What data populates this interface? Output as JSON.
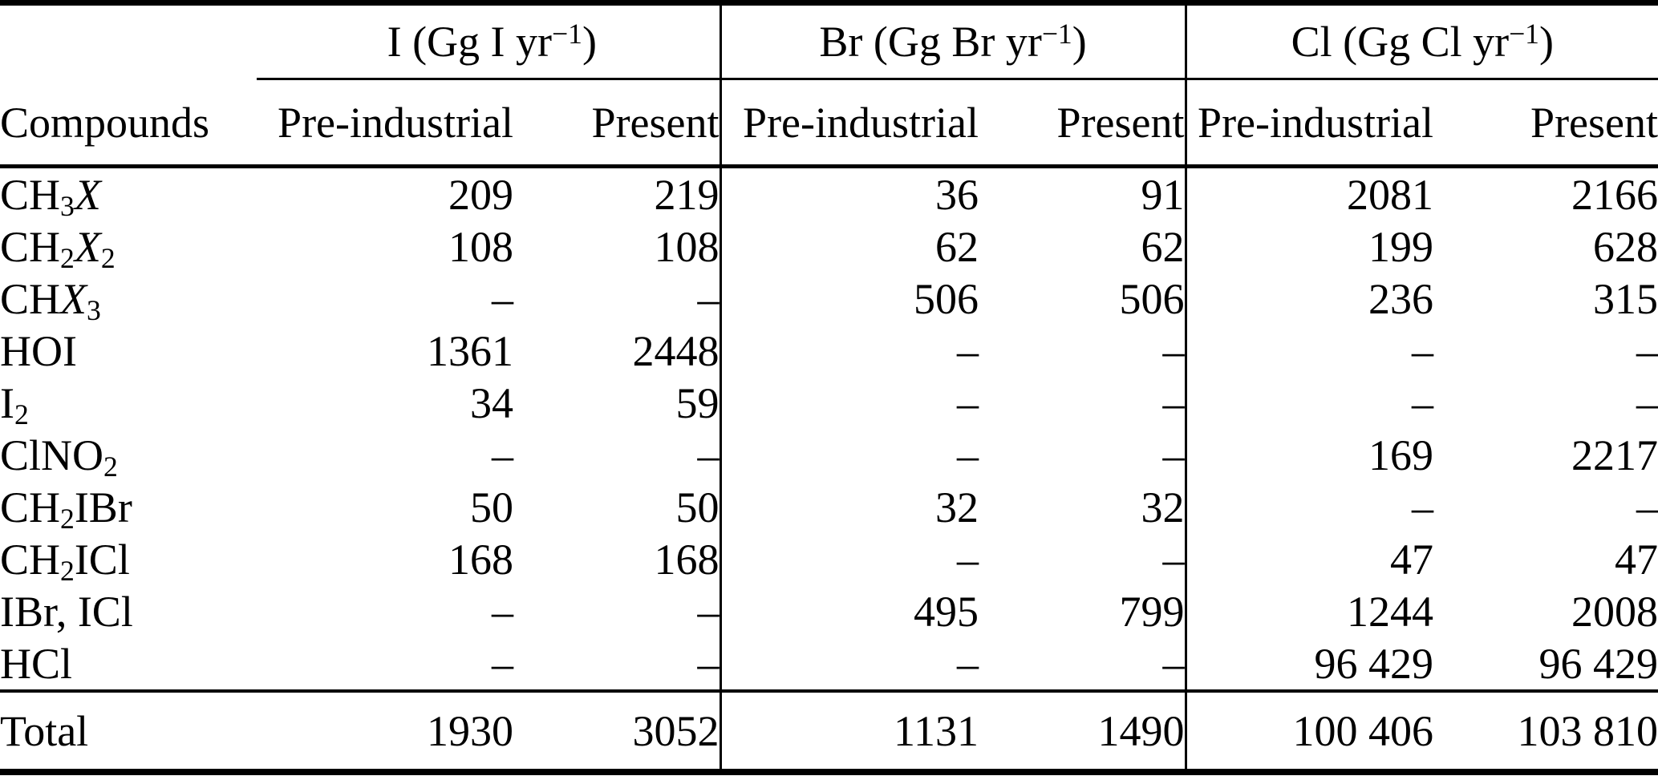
{
  "table": {
    "compounds_header": "Compounds",
    "col_groups": [
      {
        "id": "iodine",
        "label_html": "I (Gg I yr<sup>−1</sup>)"
      },
      {
        "id": "bromine",
        "label_html": "Br (Gg Br yr<sup>−1</sup>)"
      },
      {
        "id": "chlorine",
        "label_html": "Cl (Gg Cl yr<sup>−1</sup>)"
      }
    ],
    "sub_headers": [
      "Pre-industrial",
      "Present",
      "Pre-industrial",
      "Present",
      "Pre-industrial",
      "Present"
    ],
    "rows": [
      {
        "compound_html": "CH<sub>3</sub><i>X</i>",
        "values": [
          "209",
          "219",
          "36",
          "91",
          "2081",
          "2166"
        ]
      },
      {
        "compound_html": "CH<sub>2</sub><i>X</i><sub>2</sub>",
        "values": [
          "108",
          "108",
          "62",
          "62",
          "199",
          "628"
        ]
      },
      {
        "compound_html": "CH<i>X</i><sub>3</sub>",
        "values": [
          "–",
          "–",
          "506",
          "506",
          "236",
          "315"
        ]
      },
      {
        "compound_html": "HOI",
        "values": [
          "1361",
          "2448",
          "–",
          "–",
          "–",
          "–"
        ]
      },
      {
        "compound_html": "I<sub>2</sub>",
        "values": [
          "34",
          "59",
          "–",
          "–",
          "–",
          "–"
        ]
      },
      {
        "compound_html": "ClNO<sub>2</sub>",
        "values": [
          "–",
          "–",
          "–",
          "–",
          "169",
          "2217"
        ]
      },
      {
        "compound_html": "CH<sub>2</sub>IBr",
        "values": [
          "50",
          "50",
          "32",
          "32",
          "–",
          "–"
        ]
      },
      {
        "compound_html": "CH<sub>2</sub>ICl",
        "values": [
          "168",
          "168",
          "–",
          "–",
          "47",
          "47"
        ]
      },
      {
        "compound_html": "IBr, ICl",
        "values": [
          "–",
          "–",
          "495",
          "799",
          "1244",
          "2008"
        ]
      },
      {
        "compound_html": "HCl",
        "values": [
          "–",
          "–",
          "–",
          "–",
          "96 429",
          "96 429"
        ]
      }
    ],
    "total": {
      "label": "Total",
      "values": [
        "1930",
        "3052",
        "1131",
        "1490",
        "100 406",
        "103 810"
      ]
    }
  }
}
